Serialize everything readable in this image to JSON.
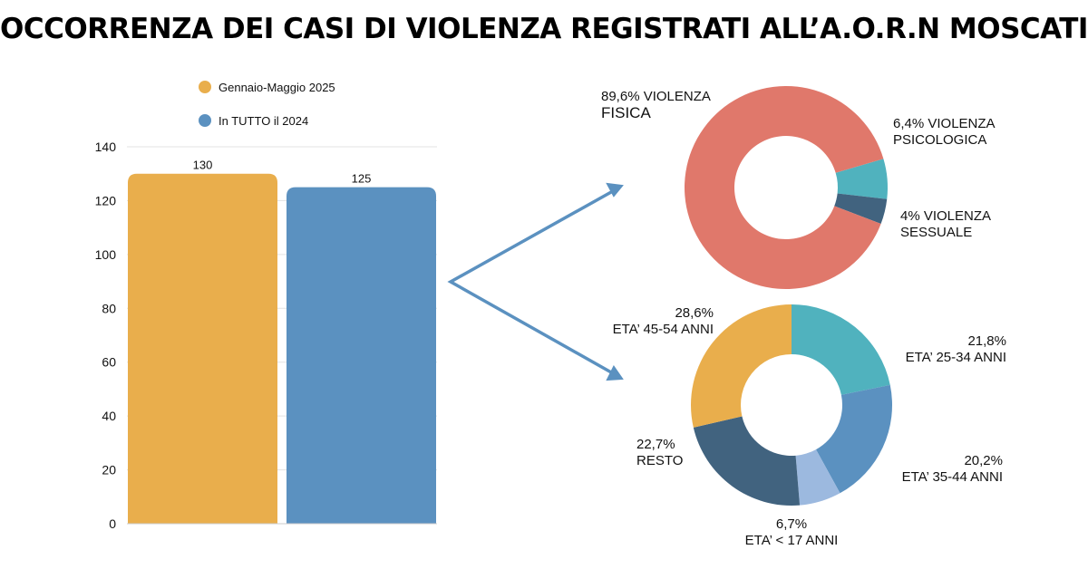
{
  "title": "OCCORRENZA DEI CASI DI VIOLENZA REGISTRATI ALL’A.O.R.N MOSCATI",
  "colors": {
    "orange": "#E9AE4C",
    "blue": "#5B91C0",
    "salmon": "#E0786B",
    "teal": "#50B2BE",
    "navy": "#41637F",
    "lightblue": "#9CB9DF",
    "arrow": "#5B91C0",
    "grid": "#E3E3E3"
  },
  "chart_data": [
    {
      "type": "bar",
      "categories": [
        "Gennaio-Maggio 2025",
        "In TUTTO il 2024"
      ],
      "values": [
        130,
        125
      ],
      "value_labels": [
        "130",
        "125"
      ],
      "colors": [
        "#E9AE4C",
        "#5B91C0"
      ],
      "legend": [
        "Gennaio-Maggio 2025",
        "In TUTTO il 2024"
      ],
      "legend_position": "top",
      "ylim": [
        0,
        140
      ],
      "yticks": [
        0,
        20,
        40,
        60,
        80,
        100,
        120,
        140
      ],
      "grid": true
    },
    {
      "type": "pie",
      "donut": true,
      "slices": [
        {
          "label1": "6,4% VIOLENZA",
          "label2": "PSICOLOGICA",
          "value": 6.4,
          "color": "#50B2BE"
        },
        {
          "label1": "4% VIOLENZA",
          "label2": "SESSUALE",
          "value": 4,
          "color": "#41637F"
        },
        {
          "label1": "89,6% VIOLENZA",
          "label2": "FISICA",
          "value": 89.6,
          "color": "#E0786B"
        }
      ]
    },
    {
      "type": "pie",
      "donut": true,
      "slices": [
        {
          "label1": "21,8%",
          "label2": "ETA’ 25-34 ANNI",
          "value": 21.8,
          "color": "#50B2BE"
        },
        {
          "label1": "20,2%",
          "label2": "ETA’ 35-44 ANNI",
          "value": 20.2,
          "color": "#5B91C0"
        },
        {
          "label1": "6,7%",
          "label2": "ETA’ < 17 ANNI",
          "value": 6.7,
          "color": "#9CB9DF"
        },
        {
          "label1": "22,7%",
          "label2": "RESTO",
          "value": 22.7,
          "color": "#41637F"
        },
        {
          "label1": "28,6%",
          "label2": "ETA’ 45-54 ANNI",
          "value": 28.6,
          "color": "#E9AE4C"
        }
      ]
    }
  ]
}
